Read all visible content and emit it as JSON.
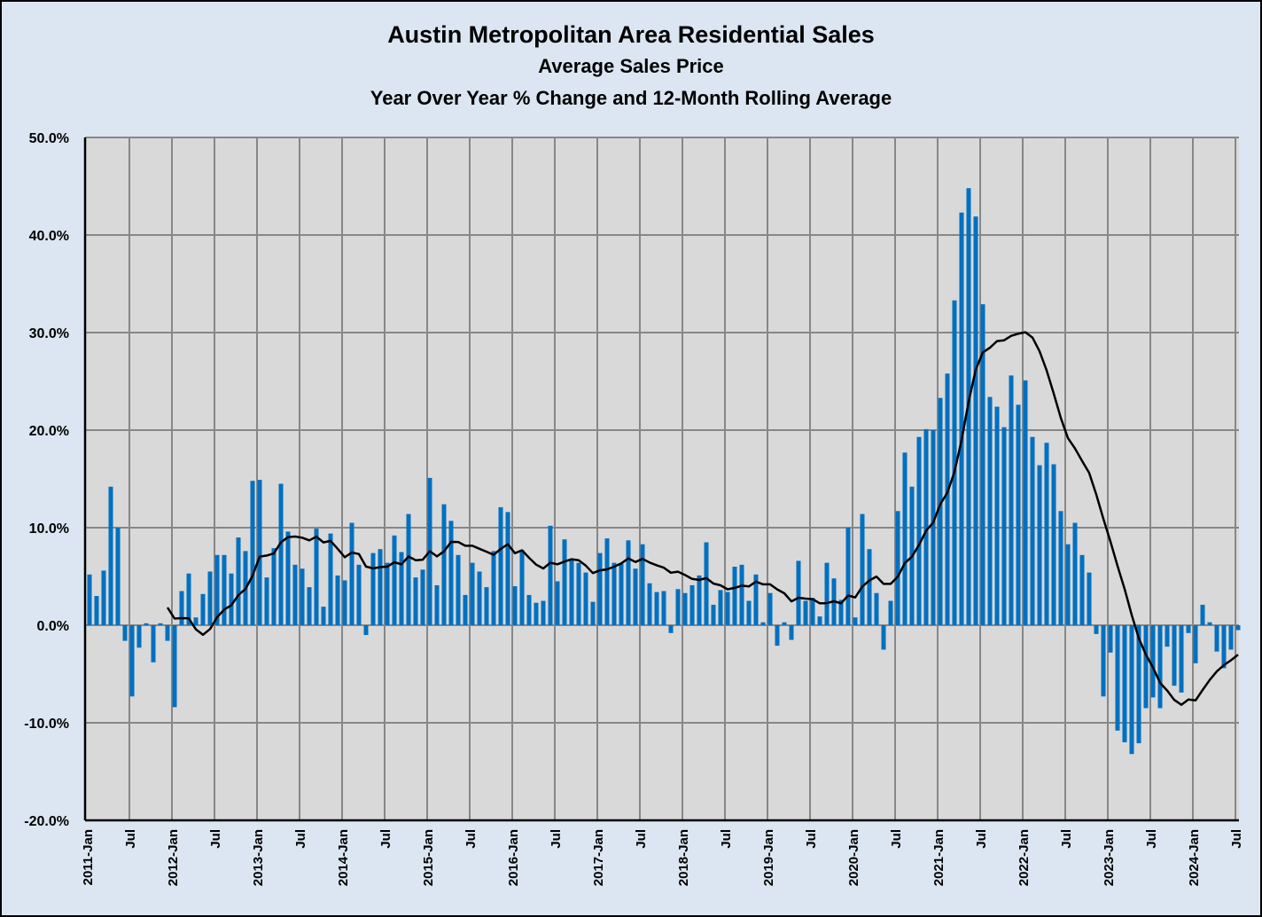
{
  "chart_data": {
    "type": "bar",
    "title": "Austin Metropolitan Area Residential Sales",
    "subtitle": "Average Sales Price",
    "subtitle2": "Year Over Year % Change and  12-Month Rolling Average",
    "xlabel": "",
    "ylabel": "",
    "ylim": [
      -20,
      50
    ],
    "y_ticks": [
      "50.0%",
      "40.0%",
      "30.0%",
      "20.0%",
      "10.0%",
      "0.0%",
      "-10.0%",
      "-20.0%"
    ],
    "y_tick_values": [
      50,
      40,
      30,
      20,
      10,
      0,
      -10,
      -20
    ],
    "x_start": "2011-Jan",
    "x_end": "2024-Jul",
    "x_tick_every_months": 6,
    "x_ticks": [
      "2011-Jan",
      "Jul",
      "2012-Jan",
      "Jul",
      "2013-Jan",
      "Jul",
      "2014-Jan",
      "Jul",
      "2015-Jan",
      "Jul",
      "2016-Jan",
      "Jul",
      "2017-Jan",
      "Jul",
      "2018-Jan",
      "Jul",
      "2019-Jan",
      "Jul",
      "2020-Jan",
      "Jul",
      "2021-Jan",
      "Jul",
      "2022-Jan",
      "Jul",
      "2023-Jan",
      "Jul",
      "2024-Jan",
      "Jul"
    ],
    "grid": true,
    "legend": "none",
    "series": [
      {
        "kind": "bar",
        "unit": "percent",
        "color": "#0070c0",
        "values": [
          5.2,
          3.0,
          5.6,
          14.2,
          10.0,
          -1.6,
          -7.3,
          -2.3,
          0.2,
          -3.8,
          0.2,
          -1.6,
          -8.4,
          3.5,
          5.3,
          0.8,
          3.2,
          5.5,
          7.2,
          7.2,
          5.3,
          9.0,
          7.6,
          14.8,
          14.9,
          4.9,
          7.9,
          14.5,
          9.6,
          6.2,
          5.8,
          3.9,
          9.9,
          1.9,
          9.4,
          5.1,
          4.6,
          10.5,
          6.2,
          -1.0,
          7.4,
          7.8,
          6.4,
          9.2,
          7.5,
          11.4,
          4.9,
          5.7,
          15.1,
          4.1,
          12.4,
          10.7,
          7.2,
          3.1,
          6.4,
          5.5,
          3.9,
          7.6,
          12.1,
          11.6,
          4.0,
          7.7,
          3.1,
          2.3,
          2.5,
          10.2,
          4.5,
          8.8,
          6.8,
          6.4,
          5.4,
          2.4,
          7.4,
          8.9,
          6.4,
          6.3,
          8.7,
          5.8,
          8.3,
          4.3,
          3.4,
          3.5,
          -0.8,
          3.7,
          3.3,
          4.1,
          5.1,
          8.5,
          2.1,
          3.6,
          3.4,
          6.0,
          6.2,
          2.5,
          5.2,
          0.3,
          3.3,
          -2.1,
          0.3,
          -1.5,
          6.6,
          2.5,
          2.8,
          0.9,
          6.4,
          4.8,
          2.6,
          10.0,
          0.8,
          11.4,
          7.8,
          3.3,
          -2.5,
          2.5,
          11.7,
          17.7,
          14.2,
          19.3,
          20.1,
          20.0,
          23.3,
          25.8,
          33.3,
          42.3,
          44.8,
          41.9,
          32.9,
          23.4,
          22.4,
          20.3,
          25.6,
          22.6,
          25.1,
          19.3,
          16.4,
          18.7,
          16.5,
          11.7,
          8.3,
          10.5,
          7.2,
          5.4,
          -0.9,
          -7.3,
          -2.8,
          -10.8,
          -12.0,
          -13.2,
          -12.1,
          -8.5,
          -7.4,
          -8.5,
          -2.2,
          -6.2,
          -6.9,
          -0.8,
          -3.9,
          2.1,
          0.3,
          -2.7,
          -4.4,
          -2.5,
          -0.5
        ]
      },
      {
        "kind": "line",
        "of": "rolling_mean_of_bars",
        "window": 12,
        "color": "#000000"
      }
    ],
    "colors": {
      "page_bg": "#dce6f2",
      "plot_bg": "#d9d9d9",
      "grid": "#878787"
    }
  }
}
